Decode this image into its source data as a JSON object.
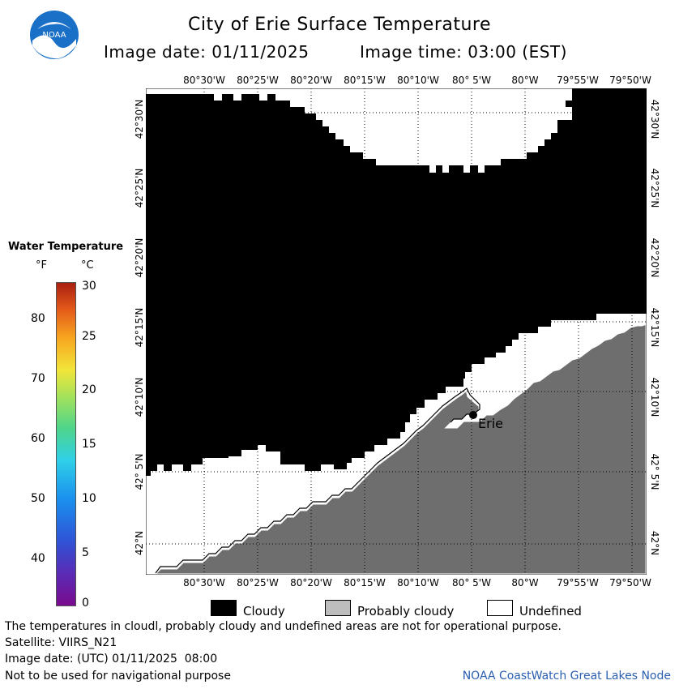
{
  "header": {
    "title": "City of Erie Surface Temperature",
    "image_date": "Image date: 01/11/2025",
    "image_time": "Image time: 03:00 (EST)"
  },
  "logo": {
    "text": "NOAA"
  },
  "legend": {
    "title": "Water Temperature",
    "unit_f": "°F",
    "unit_c": "°C",
    "f_ticks": [
      "80",
      "70",
      "60",
      "50",
      "40"
    ],
    "c_ticks": [
      "30",
      "25",
      "20",
      "15",
      "10",
      "5",
      "0"
    ]
  },
  "axes": {
    "lon_labels": [
      "80°30'W",
      "80°25'W",
      "80°20'W",
      "80°15'W",
      "80°10'W",
      "80° 5'W",
      "80°W",
      "79°55'W",
      "79°50'W"
    ],
    "lat_labels": [
      "42°30'N",
      "42°25'N",
      "42°20'N",
      "42°15'N",
      "42°10'N",
      "42° 5'N",
      "42°N"
    ]
  },
  "map": {
    "city_label": "Erie"
  },
  "key": {
    "cloudy": "Cloudy",
    "probably_cloudy": "Probably cloudy",
    "undefined": "Undefined"
  },
  "footer": {
    "disclaimer": "The temperatures in cloudl, probably cloudy and undefined areas are not for operational purpose.",
    "satellite": "Satellite: VIIRS_N21",
    "utc_date": "Image date: (UTC) 01/11/2025  08:00",
    "nav_warning": "Not to be used for navigational purpose",
    "credit": "NOAA CoastWatch Great Lakes Node"
  },
  "colors": {
    "cloudy": "#000000",
    "probably_cloudy": "#bdbdbd",
    "land": "#6e6e6e",
    "undefined": "#ffffff",
    "credit": "#2a5fb0",
    "noaa_blue": "#1e7fd6"
  }
}
